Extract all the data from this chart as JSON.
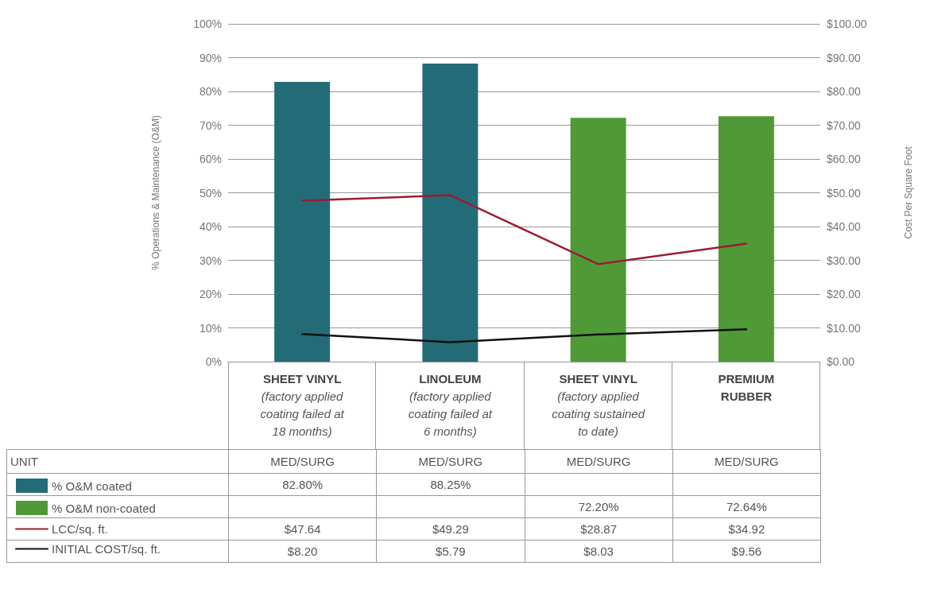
{
  "chart_data": {
    "type": "bar",
    "ylabel": "% Operations & Maintenance (O&M)",
    "y2label": "Cost Per Square Foot",
    "categories": [
      "SHEET VINYL\n(factory applied\ncoating failed at\n18 months)",
      "LINOLEUM\n(factory applied\ncoating failed at\n6 months)",
      "SHEET VINYL\n(factory applied\ncoating sustained\nto date)",
      "PREMIUM\nRUBBER"
    ],
    "series": [
      {
        "name": "% O&M coated",
        "color": "#236c77",
        "values": [
          82.8,
          88.25,
          null,
          null
        ],
        "value_labels": [
          "82.80%",
          "88.25%",
          null,
          null
        ]
      },
      {
        "name": "% O&M non-coated",
        "color": "#4f9a36",
        "values": [
          null,
          null,
          72.2,
          72.64
        ],
        "value_labels": [
          null,
          null,
          "72.20%",
          "72.64%"
        ]
      },
      {
        "name": "LCC/sq. ft.",
        "type": "line",
        "axis": "y2",
        "color": "#9b1c33",
        "values": [
          47.64,
          49.29,
          28.87,
          34.92
        ],
        "value_labels": [
          "$47.64",
          "$49.29",
          "$28.87",
          "$34.92"
        ]
      },
      {
        "name": "INITIAL COST/sq. ft.",
        "type": "line",
        "axis": "y2",
        "color": "#111111",
        "values": [
          8.2,
          5.79,
          8.03,
          9.56
        ],
        "value_labels": [
          "$8.20",
          "$5.79",
          "$8.03",
          "$9.56"
        ]
      }
    ],
    "annotations": [
      "UNIT",
      "MED/SURG",
      "MED/SURG",
      "MED/SURG",
      "MED/SURG"
    ],
    "ylim": [
      0,
      100
    ],
    "yticks": [
      {
        "value": 0,
        "label": "0%"
      },
      {
        "value": 10,
        "label": "10%"
      },
      {
        "value": 20,
        "label": "20%"
      },
      {
        "value": 30,
        "label": "30%"
      },
      {
        "value": 40,
        "label": "40%"
      },
      {
        "value": 50,
        "label": "50%"
      },
      {
        "value": 60,
        "label": "60%"
      },
      {
        "value": 70,
        "label": "70%"
      },
      {
        "value": 80,
        "label": "80%"
      },
      {
        "value": 90,
        "label": "90%"
      },
      {
        "value": 100,
        "label": "100%"
      }
    ],
    "y2lim": [
      0,
      100
    ],
    "y2ticks": [
      {
        "value": 0,
        "label": "$0.00"
      },
      {
        "value": 10,
        "label": "$10.00"
      },
      {
        "value": 20,
        "label": "$20.00"
      },
      {
        "value": 30,
        "label": "$30.00"
      },
      {
        "value": 40,
        "label": "$40.00"
      },
      {
        "value": 50,
        "label": "$50.00"
      },
      {
        "value": 60,
        "label": "$60.00"
      },
      {
        "value": 70,
        "label": "$70.00"
      },
      {
        "value": 80,
        "label": "$80.00"
      },
      {
        "value": 90,
        "label": "$90.00"
      },
      {
        "value": 100,
        "label": "$100.00"
      }
    ],
    "grid": "y",
    "legend": "bottom left",
    "marker": "none",
    "line_style": "solid"
  }
}
